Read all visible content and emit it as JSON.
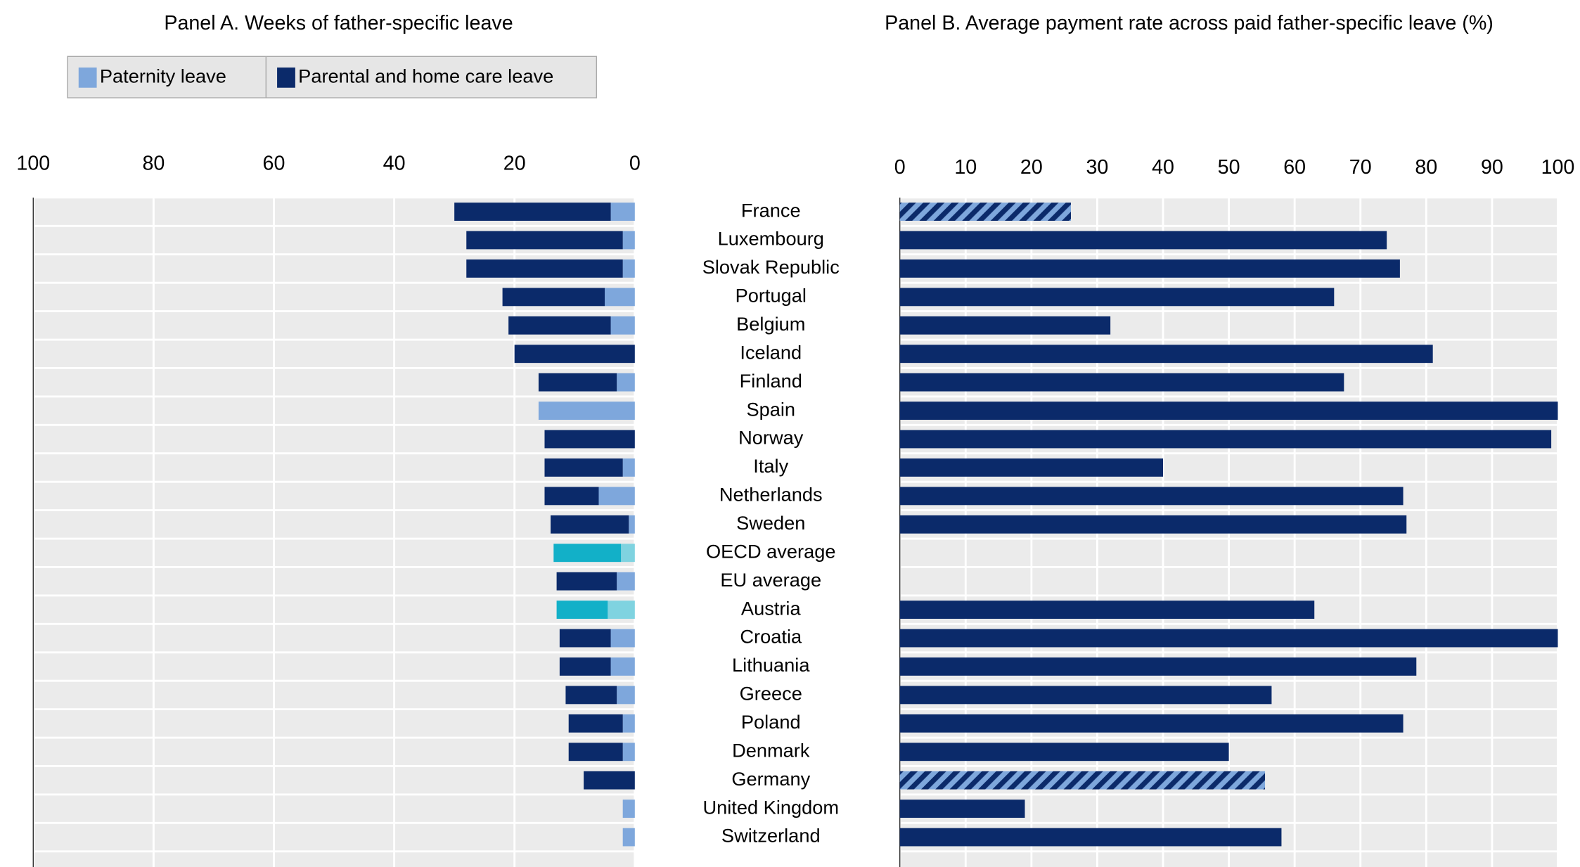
{
  "chart_data": [
    {
      "type": "hbar_stacked_reversed",
      "title": "Panel A. Weeks of father-specific leave",
      "categories": [
        "France",
        "Luxembourg",
        "Slovak Republic",
        "Portugal",
        "Belgium",
        "Iceland",
        "Finland",
        "Spain",
        "Norway",
        "Italy",
        "Netherlands",
        "Sweden",
        "OECD average",
        "EU average",
        "Austria",
        "Croatia",
        "Lithuania",
        "Greece",
        "Poland",
        "Denmark",
        "Germany",
        "United Kingdom",
        "Switzerland"
      ],
      "series": [
        {
          "name": "Paternity leave",
          "color": "#7ea7dc",
          "colors": [
            "#7ea7dc",
            "#7ea7dc",
            "#7ea7dc",
            "#7ea7dc",
            "#7ea7dc",
            "#7ea7dc",
            "#7ea7dc",
            "#7ea7dc",
            "#7ea7dc",
            "#7ea7dc",
            "#7ea7dc",
            "#7ea7dc",
            "#7fd3e0",
            "#7ea7dc",
            "#7fd3e0",
            "#7ea7dc",
            "#7ea7dc",
            "#7ea7dc",
            "#7ea7dc",
            "#7ea7dc",
            "#7ea7dc",
            "#7ea7dc",
            "#7ea7dc"
          ],
          "values": [
            4,
            2,
            2,
            5,
            4,
            0,
            3,
            16,
            0,
            2,
            6,
            1,
            2.3,
            3,
            4.5,
            4,
            4,
            3,
            2,
            2,
            0,
            2,
            2
          ]
        },
        {
          "name": "Parental and home care leave",
          "color": "#0b2a6a",
          "colors": [
            "#0b2a6a",
            "#0b2a6a",
            "#0b2a6a",
            "#0b2a6a",
            "#0b2a6a",
            "#0b2a6a",
            "#0b2a6a",
            "#0b2a6a",
            "#0b2a6a",
            "#0b2a6a",
            "#0b2a6a",
            "#0b2a6a",
            "#12b0c8",
            "#0b2a6a",
            "#12b0c8",
            "#0b2a6a",
            "#0b2a6a",
            "#0b2a6a",
            "#0b2a6a",
            "#0b2a6a",
            "#0b2a6a",
            "#0b2a6a",
            "#0b2a6a"
          ],
          "values": [
            26,
            26,
            26,
            17,
            17,
            20,
            13,
            0,
            15,
            13,
            9,
            13,
            11.2,
            10,
            8.5,
            8.5,
            8.5,
            8.5,
            9,
            9,
            8.5,
            0,
            0
          ]
        }
      ],
      "xlim": [
        100,
        0
      ],
      "xticks": [
        100,
        80,
        60,
        40,
        20,
        0
      ],
      "grid": true
    },
    {
      "type": "hbar",
      "title": "Panel B. Average payment rate across paid father-specific leave (%)",
      "color": "#0b2a6a",
      "values": [
        26,
        74,
        76,
        66,
        32,
        81,
        67.5,
        100,
        99,
        40,
        76.5,
        77,
        null,
        null,
        63,
        100,
        78.5,
        56.5,
        76.5,
        50,
        55.5,
        19,
        58
      ],
      "hatched": [
        true,
        false,
        false,
        false,
        false,
        false,
        false,
        false,
        false,
        false,
        false,
        false,
        false,
        false,
        false,
        false,
        false,
        false,
        false,
        false,
        true,
        false,
        false
      ],
      "xlim": [
        0,
        100
      ],
      "xticks": [
        0,
        10,
        20,
        30,
        40,
        50,
        60,
        70,
        80,
        90,
        100
      ],
      "grid": true
    }
  ]
}
